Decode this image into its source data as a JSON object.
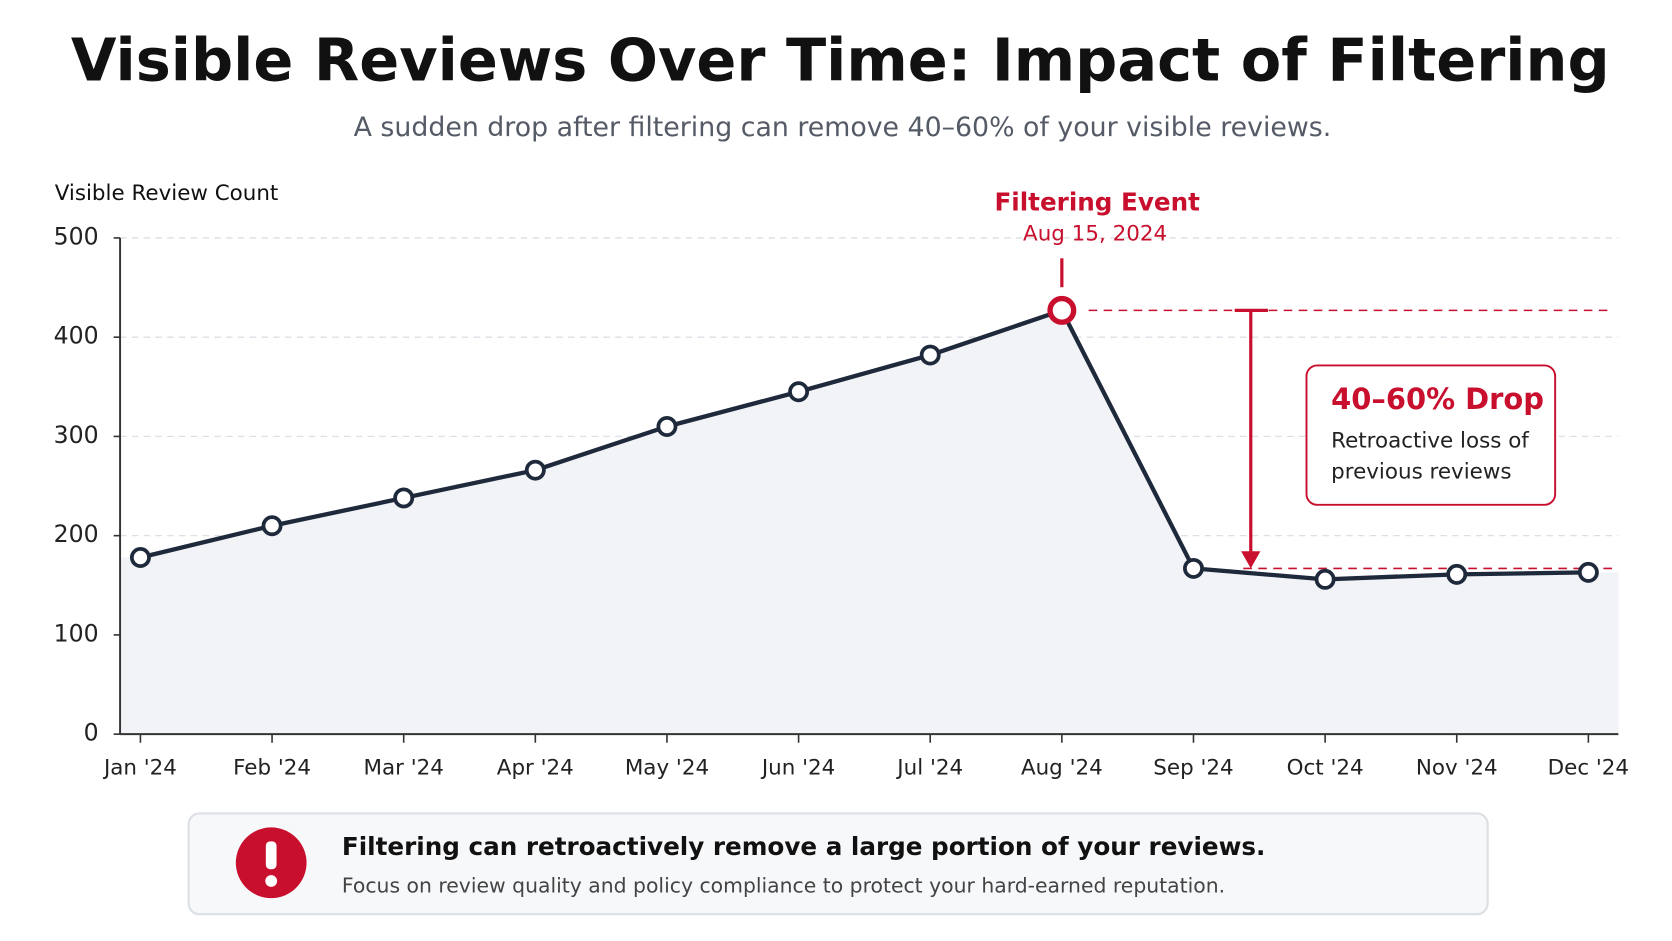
{
  "chart_data": {
    "type": "line",
    "title": "Visible Reviews Over Time: Impact of Filtering",
    "subtitle": "A sudden drop after filtering can remove 40–60% of your visible reviews.",
    "y_label": "Visible Review Count",
    "categories": [
      "Jan '24",
      "Feb '24",
      "Mar '24",
      "Apr '24",
      "May '24",
      "Jun '24",
      "Jul '24",
      "Aug '24",
      "Sep '24",
      "Oct '24",
      "Nov '24",
      "Dec '24"
    ],
    "values": [
      178,
      210,
      238,
      266,
      310,
      345,
      382,
      427,
      167,
      156,
      161,
      163
    ],
    "color": "#1e293b",
    "area_color": "#f1f3f7",
    "ylim": [
      0,
      500
    ],
    "yticks": [
      0,
      100,
      200,
      300,
      400,
      500
    ],
    "grid": true,
    "event": {
      "title": "Filtering Event",
      "date": "Aug 15, 2024",
      "color": "#c8102e"
    },
    "drop": {
      "title": "40–60% Drop",
      "lines": [
        "Retroactive loss of",
        "previous reviews"
      ]
    },
    "callout": {
      "heading": "Filtering can retroactively remove a large portion of your reviews.",
      "text": "Focus on review quality and policy compliance to protect your hard-earned reputation."
    }
  }
}
